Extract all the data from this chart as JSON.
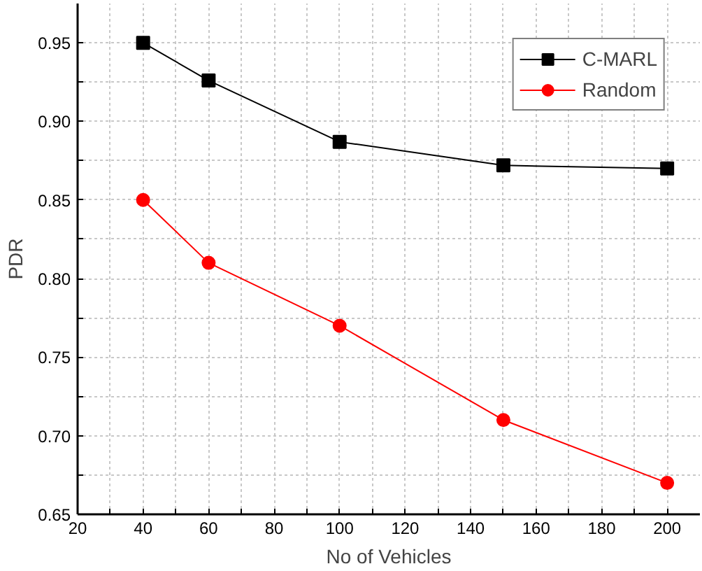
{
  "chart_data": {
    "type": "line",
    "xlabel": "No of Vehicles",
    "ylabel": "PDR",
    "x": [
      40,
      60,
      100,
      150,
      200
    ],
    "series": [
      {
        "name": "C-MARL",
        "color": "#000000",
        "marker": "square",
        "values": [
          0.95,
          0.926,
          0.887,
          0.872,
          0.87
        ]
      },
      {
        "name": "Random",
        "color": "#ff0000",
        "marker": "circle",
        "values": [
          0.85,
          0.81,
          0.77,
          0.71,
          0.67
        ]
      }
    ],
    "xlim": [
      20,
      210
    ],
    "ylim": [
      0.65,
      0.975
    ],
    "xticks": [
      20,
      {
        "value": 30,
        "label": null
      },
      40,
      {
        "value": 50,
        "label": null
      },
      60,
      {
        "value": 70,
        "label": null
      },
      80,
      {
        "value": 90,
        "label": null
      },
      100,
      {
        "value": 110,
        "label": null
      },
      120,
      {
        "value": 130,
        "label": null
      },
      140,
      {
        "value": 150,
        "label": null
      },
      160,
      {
        "value": 170,
        "label": null
      },
      180,
      {
        "value": 190,
        "label": null
      },
      200
    ],
    "yticks": [
      {
        "value": 0.65,
        "label": "0.65"
      },
      {
        "value": 0.675,
        "label": null
      },
      {
        "value": 0.7,
        "label": "0.70"
      },
      {
        "value": 0.725,
        "label": null
      },
      {
        "value": 0.75,
        "label": "0.75"
      },
      {
        "value": 0.775,
        "label": null
      },
      {
        "value": 0.8,
        "label": "0.80"
      },
      {
        "value": 0.825,
        "label": null
      },
      {
        "value": 0.85,
        "label": "0.85"
      },
      {
        "value": 0.875,
        "label": null
      },
      {
        "value": 0.9,
        "label": "0.90"
      },
      {
        "value": 0.925,
        "label": null
      },
      {
        "value": 0.95,
        "label": "0.95"
      }
    ],
    "grid": true,
    "legend": "top right",
    "line_style": "solid"
  }
}
